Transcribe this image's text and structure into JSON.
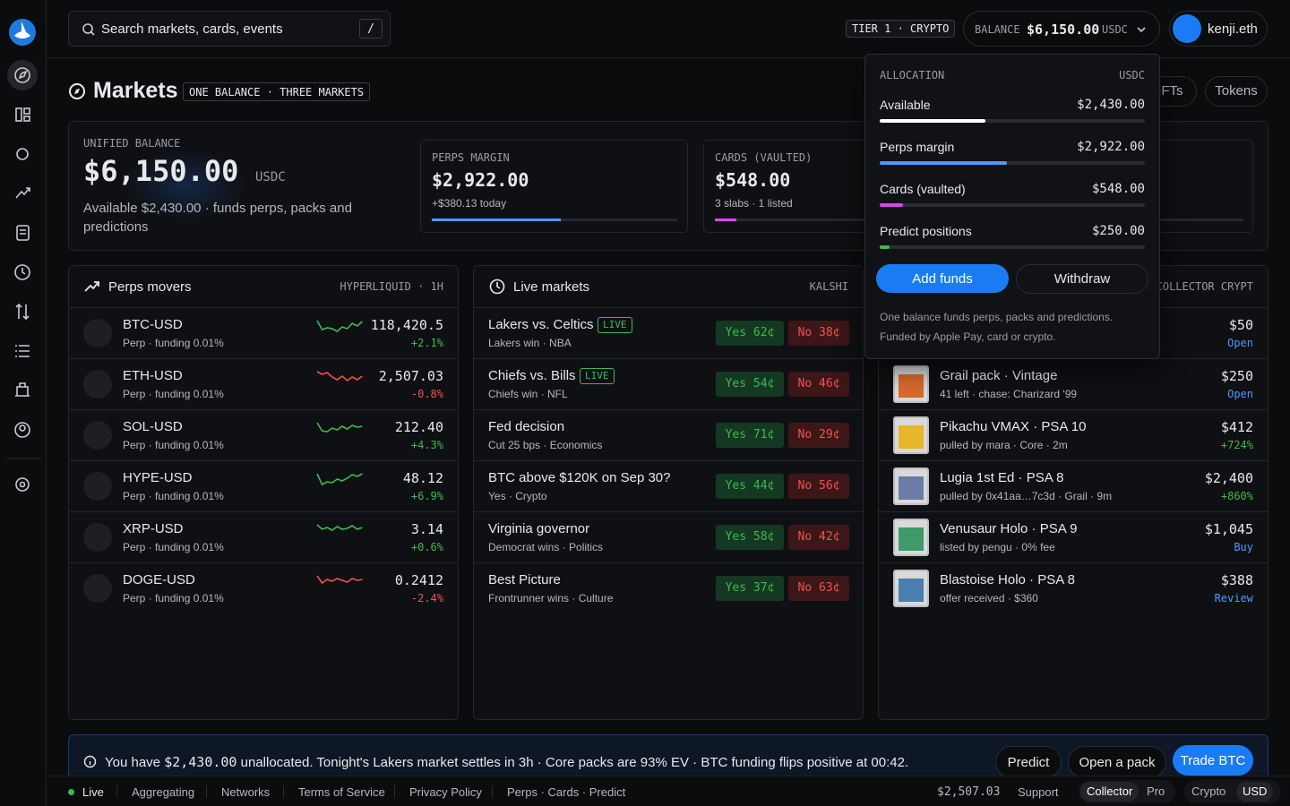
{
  "header": {
    "search_placeholder": "Search markets, cards, events",
    "search_shortcut": "/",
    "tier": "TIER 1 · CRYPTO",
    "balance_label": "BALANCE",
    "balance": "$6,150.00",
    "balance_unit": "USDC",
    "user": "kenji.eth"
  },
  "page": {
    "title": "Markets",
    "badge": "ONE BALANCE · THREE MARKETS",
    "tabs": [
      "NFTs",
      "Tokens"
    ]
  },
  "summary": {
    "label": "UNIFIED BALANCE",
    "amount": "$6,150.00",
    "unit": "USDC",
    "note": "Available $2,430.00 · funds perps, packs and predictions",
    "cards": [
      {
        "label": "PERPS MARGIN",
        "amount": "$2,922.00",
        "note": "+$380.13 today"
      },
      {
        "label": "CARDS (VAULTED)",
        "amount": "$548.00",
        "note": "3 slabs · 1 listed"
      }
    ]
  },
  "perps": {
    "title": "Perps movers",
    "source": "HYPERLIQUID · 1H",
    "rows": [
      {
        "symbol": "BTC-USD",
        "sub": "Perp · funding 0.01%",
        "price": "118,420.5",
        "change": "+2.1%"
      },
      {
        "symbol": "ETH-USD",
        "sub": "Perp · funding 0.01%",
        "price": "2,507.03",
        "change": "-0.8%"
      },
      {
        "symbol": "SOL-USD",
        "sub": "Perp · funding 0.01%",
        "price": "212.40",
        "change": "+4.3%"
      },
      {
        "symbol": "HYPE-USD",
        "sub": "Perp · funding 0.01%",
        "price": "48.12",
        "change": "+6.9%"
      },
      {
        "symbol": "XRP-USD",
        "sub": "Perp · funding 0.01%",
        "price": "3.14",
        "change": "+0.6%"
      },
      {
        "symbol": "DOGE-USD",
        "sub": "Perp · funding 0.01%",
        "price": "0.2412",
        "change": "-2.4%"
      }
    ]
  },
  "live": {
    "title": "Live markets",
    "source": "KALSHI",
    "rows": [
      {
        "name": "Lakers vs. Celtics",
        "badge": "LIVE",
        "sub": "Lakers win · NBA",
        "yes": "Yes 62¢",
        "no": "No 38¢"
      },
      {
        "name": "Chiefs vs. Bills",
        "badge": "LIVE",
        "sub": "Chiefs win · NFL",
        "yes": "Yes 54¢",
        "no": "No 46¢"
      },
      {
        "name": "Fed decision",
        "sub": "Cut 25 bps · Economics",
        "yes": "Yes 71¢",
        "no": "No 29¢"
      },
      {
        "name": "BTC above $120K on Sep 30?",
        "sub": "Yes · Crypto",
        "yes": "Yes 44¢",
        "no": "No 56¢"
      },
      {
        "name": "Virginia governor",
        "sub": "Democrat wins · Politics",
        "yes": "Yes 58¢",
        "no": "No 42¢"
      },
      {
        "name": "Best Picture",
        "sub": "Frontrunner wins · Culture",
        "yes": "Yes 37¢",
        "no": "No 63¢"
      }
    ]
  },
  "collector": {
    "source": "COLLECTOR CRYPT",
    "rows": [
      {
        "price": "$50",
        "action": "Open"
      },
      {
        "name": "Grail pack · Vintage",
        "sub": "41 left · chase: Charizard '99",
        "price": "$250",
        "action": "Open"
      },
      {
        "name": "Pikachu VMAX · PSA 10",
        "sub": "pulled by mara · Core · 2m",
        "price": "$412",
        "action": "+724%"
      },
      {
        "name": "Lugia 1st Ed · PSA 8",
        "sub": "pulled by 0x41aa…7c3d · Grail · 9m",
        "price": "$2,400",
        "action": "+860%"
      },
      {
        "name": "Venusaur Holo · PSA 9",
        "sub": "listed by pengu · 0% fee",
        "price": "$1,045",
        "action": "Buy"
      },
      {
        "name": "Blastoise Holo · PSA 8",
        "sub": "offer received · $360",
        "price": "$388",
        "action": "Review"
      }
    ]
  },
  "allocation": {
    "title": "ALLOCATION",
    "unit": "USDC",
    "rows": [
      {
        "label": "Available",
        "amount": "$2,430.00"
      },
      {
        "label": "Perps margin",
        "amount": "$2,922.00"
      },
      {
        "label": "Cards (vaulted)",
        "amount": "$548.00"
      },
      {
        "label": "Predict positions",
        "amount": "$250.00"
      }
    ],
    "buttons": [
      "Add funds",
      "Withdraw"
    ],
    "notes": [
      "One balance funds perps, packs and predictions.",
      "Funded by Apple Pay, card or crypto."
    ]
  },
  "banner": {
    "text_before": "You have",
    "amount": "$2,430.00",
    "text_after": "unallocated. Tonight's Lakers market settles in 3h · Core packs are 93% EV · BTC funding flips positive at 00:42.",
    "actions": [
      "Predict",
      "Open a pack",
      "Trade BTC"
    ]
  },
  "footer": {
    "status": "Live",
    "links": [
      "Aggregating",
      "Networks",
      "Terms of Service",
      "Privacy Policy",
      "Perps · Cards · Predict"
    ],
    "price": "$2,507.03",
    "support": "Support",
    "mode": [
      "Collector",
      "Pro"
    ],
    "currency": [
      "Crypto",
      "USD"
    ]
  }
}
